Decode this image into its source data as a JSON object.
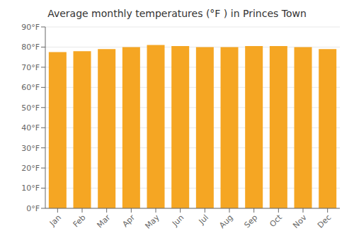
{
  "chart_data": {
    "type": "bar",
    "title": "Average monthly temperatures (°F ) in Princes Town",
    "categories": [
      "Jan",
      "Feb",
      "Mar",
      "Apr",
      "May",
      "Jun",
      "Jul",
      "Aug",
      "Sep",
      "Oct",
      "Nov",
      "Dec"
    ],
    "values": [
      77.5,
      78.0,
      79.0,
      80.0,
      81.0,
      80.5,
      80.0,
      80.0,
      80.5,
      80.5,
      80.0,
      79.0
    ],
    "color": "#F5A623",
    "ylim": [
      0,
      90
    ],
    "yticks": [
      {
        "value": 0,
        "label": "0°F"
      },
      {
        "value": 10,
        "label": "10°F"
      },
      {
        "value": 20,
        "label": "20°F"
      },
      {
        "value": 30,
        "label": "30°F"
      },
      {
        "value": 40,
        "label": "40°F"
      },
      {
        "value": 50,
        "label": "50°F"
      },
      {
        "value": 60,
        "label": "60°F"
      },
      {
        "value": 70,
        "label": "70°F"
      },
      {
        "value": 80,
        "label": "80°F"
      },
      {
        "value": 90,
        "label": "90°F"
      }
    ],
    "grid": true
  }
}
